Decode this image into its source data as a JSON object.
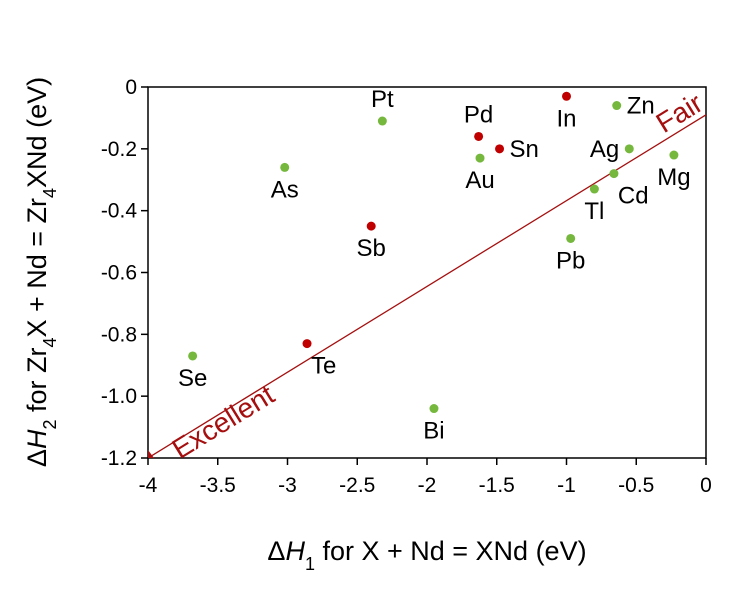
{
  "chart_data": {
    "type": "scatter",
    "xlabel": {
      "parts": [
        {
          "text": "Δ",
          "style": "normal"
        },
        {
          "text": "H",
          "style": "italic"
        },
        {
          "text": "1",
          "style": "sub"
        },
        {
          "text": " for X + Nd = XNd (eV)",
          "style": "normal"
        }
      ]
    },
    "ylabel": {
      "parts": [
        {
          "text": "Δ",
          "style": "normal"
        },
        {
          "text": "H",
          "style": "italic"
        },
        {
          "text": "2",
          "style": "sub"
        },
        {
          "text": " for Zr",
          "style": "normal"
        },
        {
          "text": "4",
          "style": "sub"
        },
        {
          "text": "X + Nd = Zr",
          "style": "normal"
        },
        {
          "text": "4",
          "style": "sub"
        },
        {
          "text": "XNd (eV)",
          "style": "normal"
        }
      ]
    },
    "xlim": [
      -4,
      0
    ],
    "ylim": [
      -1.2,
      0
    ],
    "xticks": [
      -4,
      -3.5,
      -3,
      -2.5,
      -2,
      -1.5,
      -1,
      -0.5,
      0
    ],
    "xtick_labels": [
      "-4",
      "-3.5",
      "-3",
      "-2.5",
      "-2",
      "-1.5",
      "-1",
      "-0.5",
      "0"
    ],
    "yticks": [
      0,
      -0.2,
      -0.4,
      -0.6,
      -0.8,
      -1.0,
      -1.2
    ],
    "ytick_labels": [
      "0",
      "-0.2",
      "-0.4",
      "-0.6",
      "-0.8",
      "-1.0",
      "-1.2"
    ],
    "colors": {
      "green": "#76b83e",
      "red": "#c00000",
      "line": "#a50f0f"
    },
    "points": [
      {
        "label": "Pt",
        "x": -2.32,
        "y": -0.11,
        "color": "green",
        "pos": "above"
      },
      {
        "label": "Pd",
        "x": -1.63,
        "y": -0.16,
        "color": "red",
        "pos": "above"
      },
      {
        "label": "In",
        "x": -1.0,
        "y": -0.03,
        "color": "red",
        "pos": "below"
      },
      {
        "label": "Zn",
        "x": -0.64,
        "y": -0.06,
        "color": "green",
        "pos": "right"
      },
      {
        "label": "Ag",
        "x": -0.55,
        "y": -0.2,
        "color": "green",
        "pos": "left"
      },
      {
        "label": "Sn",
        "x": -1.48,
        "y": -0.2,
        "color": "red",
        "pos": "right"
      },
      {
        "label": "Au",
        "x": -1.62,
        "y": -0.23,
        "color": "green",
        "pos": "below"
      },
      {
        "label": "As",
        "x": -3.02,
        "y": -0.26,
        "color": "green",
        "pos": "below"
      },
      {
        "label": "Mg",
        "x": -0.23,
        "y": -0.22,
        "color": "green",
        "pos": "below"
      },
      {
        "label": "Cd",
        "x": -0.66,
        "y": -0.28,
        "color": "green",
        "pos": "below-right"
      },
      {
        "label": "Tl",
        "x": -0.8,
        "y": -0.33,
        "color": "green",
        "pos": "below"
      },
      {
        "label": "Sb",
        "x": -2.4,
        "y": -0.45,
        "color": "red",
        "pos": "below"
      },
      {
        "label": "Pb",
        "x": -0.97,
        "y": -0.49,
        "color": "green",
        "pos": "below"
      },
      {
        "label": "Te",
        "x": -2.86,
        "y": -0.83,
        "color": "red",
        "pos": "below-right"
      },
      {
        "label": "Se",
        "x": -3.68,
        "y": -0.87,
        "color": "green",
        "pos": "below"
      },
      {
        "label": "Bi",
        "x": -1.95,
        "y": -1.04,
        "color": "green",
        "pos": "below"
      }
    ],
    "reference_line": {
      "from": [
        -4,
        -1.2
      ],
      "to": [
        0,
        -0.09
      ]
    },
    "annotations": [
      {
        "text": "Excellent",
        "region": "lower-left along line"
      },
      {
        "text": "Fair",
        "region": "upper-right along line"
      }
    ]
  }
}
